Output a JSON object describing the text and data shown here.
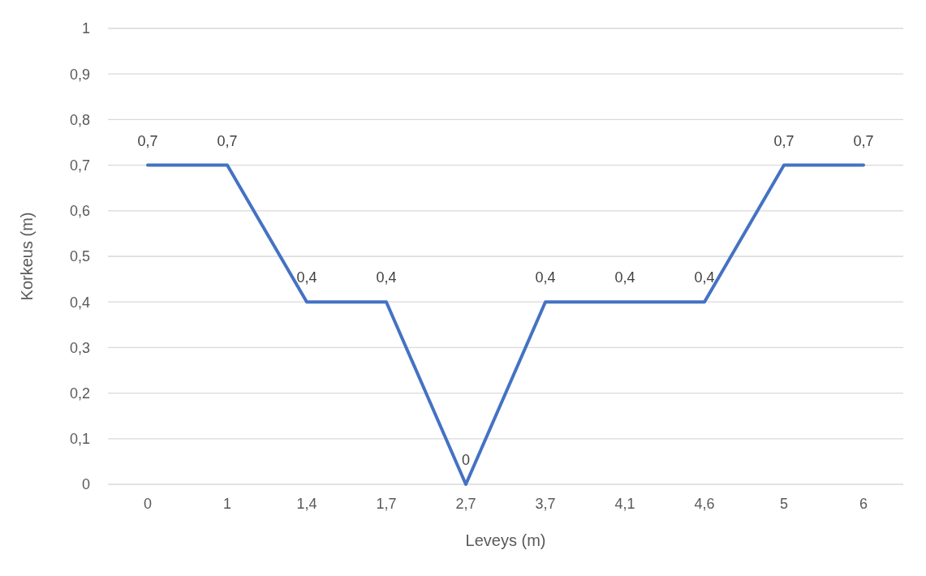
{
  "chart_data": {
    "type": "line",
    "xlabel": "Leveys (m)",
    "ylabel": "Korkeus (m)",
    "categories": [
      "0",
      "1",
      "1,4",
      "1,7",
      "2,7",
      "3,7",
      "4,1",
      "4,6",
      "5",
      "6"
    ],
    "series": [
      {
        "color": "#4472c4",
        "values": [
          0.7,
          0.7,
          0.4,
          0.4,
          0,
          0.4,
          0.4,
          0.4,
          0.7,
          0.7
        ],
        "value_labels": [
          "0,7",
          "0,7",
          "0,4",
          "0,4",
          "0",
          "0,4",
          "0,4",
          "0,4",
          "0,7",
          "0,7"
        ]
      }
    ],
    "ylim": [
      0,
      1
    ],
    "yticks": [
      {
        "value": 0,
        "label": "0"
      },
      {
        "value": 0.1,
        "label": "0,1"
      },
      {
        "value": 0.2,
        "label": "0,2"
      },
      {
        "value": 0.3,
        "label": "0,3"
      },
      {
        "value": 0.4,
        "label": "0,4"
      },
      {
        "value": 0.5,
        "label": "0,5"
      },
      {
        "value": 0.6,
        "label": "0,6"
      },
      {
        "value": 0.7,
        "label": "0,7"
      },
      {
        "value": 0.8,
        "label": "0,8"
      },
      {
        "value": 0.9,
        "label": "0,9"
      },
      {
        "value": 1,
        "label": "1"
      }
    ],
    "grid": "y",
    "marker": "none",
    "line_style": "solid"
  }
}
